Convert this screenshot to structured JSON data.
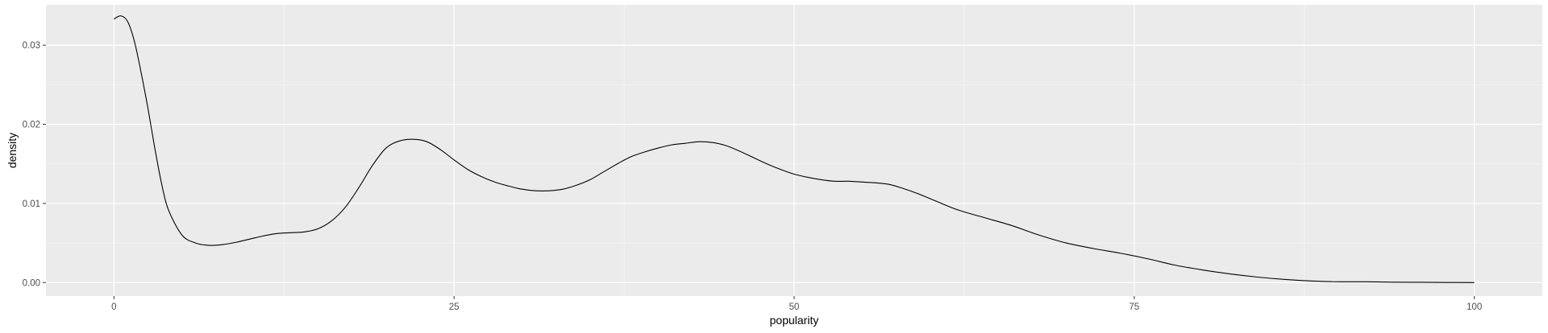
{
  "chart_data": {
    "type": "line",
    "title": "",
    "xlabel": "popularity",
    "ylabel": "density",
    "xlim": [
      -5,
      105
    ],
    "ylim": [
      -0.0017,
      0.0351
    ],
    "grid": true,
    "legend": "none",
    "x_ticks": [
      0,
      25,
      50,
      75,
      100
    ],
    "x_tick_labels": [
      "0",
      "25",
      "50",
      "75",
      "100"
    ],
    "y_ticks": [
      0.0,
      0.01,
      0.02,
      0.03
    ],
    "y_tick_labels": [
      "0.00",
      "0.01",
      "0.02",
      "0.03"
    ],
    "series": [
      {
        "x": [
          0,
          0.5,
          1,
          1.5,
          2,
          2.5,
          3,
          3.5,
          4,
          5,
          6,
          7,
          8,
          9,
          10,
          11,
          12,
          13,
          14,
          15,
          16,
          17,
          18,
          19,
          20,
          21,
          22,
          23,
          24,
          25,
          26,
          27,
          28,
          29,
          30,
          31,
          32,
          33,
          34,
          35,
          36,
          37,
          38,
          39,
          40,
          41,
          42,
          43,
          44,
          45,
          46,
          47,
          48,
          49,
          50,
          51,
          52,
          53,
          54,
          55,
          56,
          57,
          58,
          59,
          60,
          62,
          64,
          66,
          68,
          70,
          72,
          74,
          76,
          78,
          80,
          82,
          84,
          86,
          88,
          90,
          92,
          94,
          96,
          98,
          100
        ],
        "y": [
          0.0333,
          0.0337,
          0.033,
          0.0305,
          0.0265,
          0.022,
          0.017,
          0.0125,
          0.0092,
          0.006,
          0.005,
          0.0047,
          0.0048,
          0.0051,
          0.0055,
          0.0059,
          0.0062,
          0.0063,
          0.0064,
          0.0068,
          0.0078,
          0.0095,
          0.012,
          0.0148,
          0.017,
          0.0179,
          0.0181,
          0.0178,
          0.0168,
          0.0155,
          0.0143,
          0.0134,
          0.0127,
          0.0122,
          0.0118,
          0.0116,
          0.0116,
          0.0118,
          0.0123,
          0.013,
          0.014,
          0.015,
          0.0159,
          0.0165,
          0.017,
          0.0174,
          0.0176,
          0.0178,
          0.0177,
          0.0173,
          0.0166,
          0.0158,
          0.015,
          0.0143,
          0.0137,
          0.0133,
          0.013,
          0.0128,
          0.0128,
          0.0127,
          0.0126,
          0.0124,
          0.0119,
          0.0113,
          0.0106,
          0.0092,
          0.0082,
          0.0072,
          0.006,
          0.005,
          0.0043,
          0.0037,
          0.003,
          0.0022,
          0.0016,
          0.0011,
          0.0007,
          0.0004,
          0.0002,
          0.0001,
          0.0001,
          5e-05,
          3e-05,
          1e-05,
          0.0
        ]
      }
    ],
    "colors": {
      "panel_background": "#ebebeb",
      "grid_major": "#ffffff",
      "grid_minor": "#f5f5f5",
      "line": "#000000",
      "tick_text": "#4d4d4d"
    }
  }
}
